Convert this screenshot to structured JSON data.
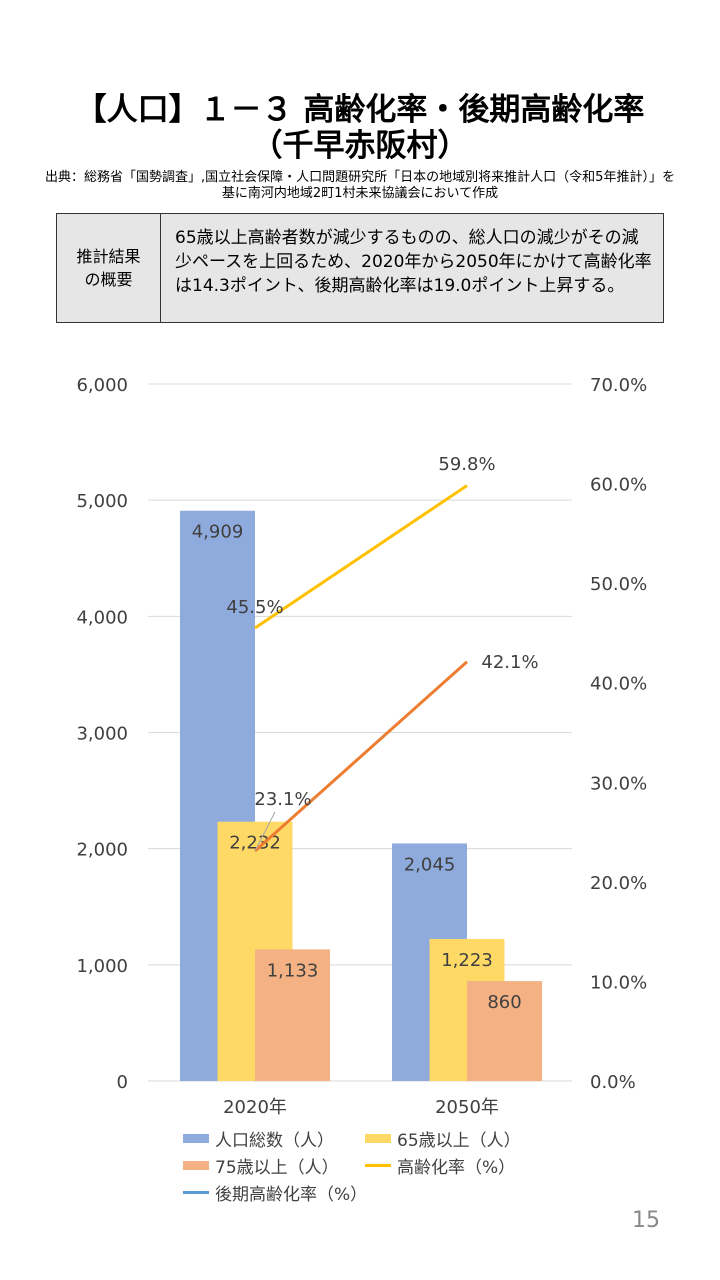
{
  "title_line1": "【人口】１－３ 高齢化率・後期高齢化率",
  "title_line2": "（千早赤阪村）",
  "source": "出典：総務省「国勢調査」,国立社会保障・人口問題研究所「日本の地域別将来推計人口（令和5年推計）」を基に南河内地域2町1村未来協議会において作成",
  "summary": {
    "label": "推計結果の概要",
    "text": "65歳以上高齢者数が減少するものの、総人口の減少がその減少ペースを上回るため、2020年から2050年にかけて高齢化率は14.3ポイント、後期高齢化率は19.0ポイント上昇する。"
  },
  "page_number": "15",
  "chart_data": {
    "type": "bar+line",
    "categories": [
      "2020年",
      "2050年"
    ],
    "left_axis": {
      "ylim": [
        0,
        6000
      ],
      "ticks": [
        "0",
        "1,000",
        "2,000",
        "3,000",
        "4,000",
        "5,000",
        "6,000"
      ]
    },
    "right_axis": {
      "ylim": [
        0,
        70
      ],
      "ticks": [
        "0.0%",
        "10.0%",
        "20.0%",
        "30.0%",
        "40.0%",
        "50.0%",
        "60.0%",
        "70.0%"
      ]
    },
    "grid": true,
    "legend_position": "bottom",
    "bar_series": [
      {
        "name": "人口総数（人）",
        "values": [
          4909,
          2045
        ],
        "labels": [
          "4,909",
          "2,045"
        ],
        "color": "#8faadc"
      },
      {
        "name": "65歳以上（人）",
        "values": [
          2232,
          1223
        ],
        "labels": [
          "2,232",
          "1,223"
        ],
        "color": "#ffd966"
      },
      {
        "name": "75歳以上（人）",
        "values": [
          1133,
          860
        ],
        "labels": [
          "1,133",
          "860"
        ],
        "color": "#f4b183"
      }
    ],
    "line_series": [
      {
        "name": "高齢化率（%）",
        "values": [
          45.5,
          59.8
        ],
        "labels": [
          "45.5%",
          "59.8%"
        ],
        "color": "#ffc000"
      },
      {
        "name": "後期高齢化率（%）",
        "values": [
          23.1,
          42.1
        ],
        "labels": [
          "23.1%",
          "42.1%"
        ],
        "color": "#ed7d31",
        "legend_color": "#5b9bd5"
      }
    ]
  }
}
